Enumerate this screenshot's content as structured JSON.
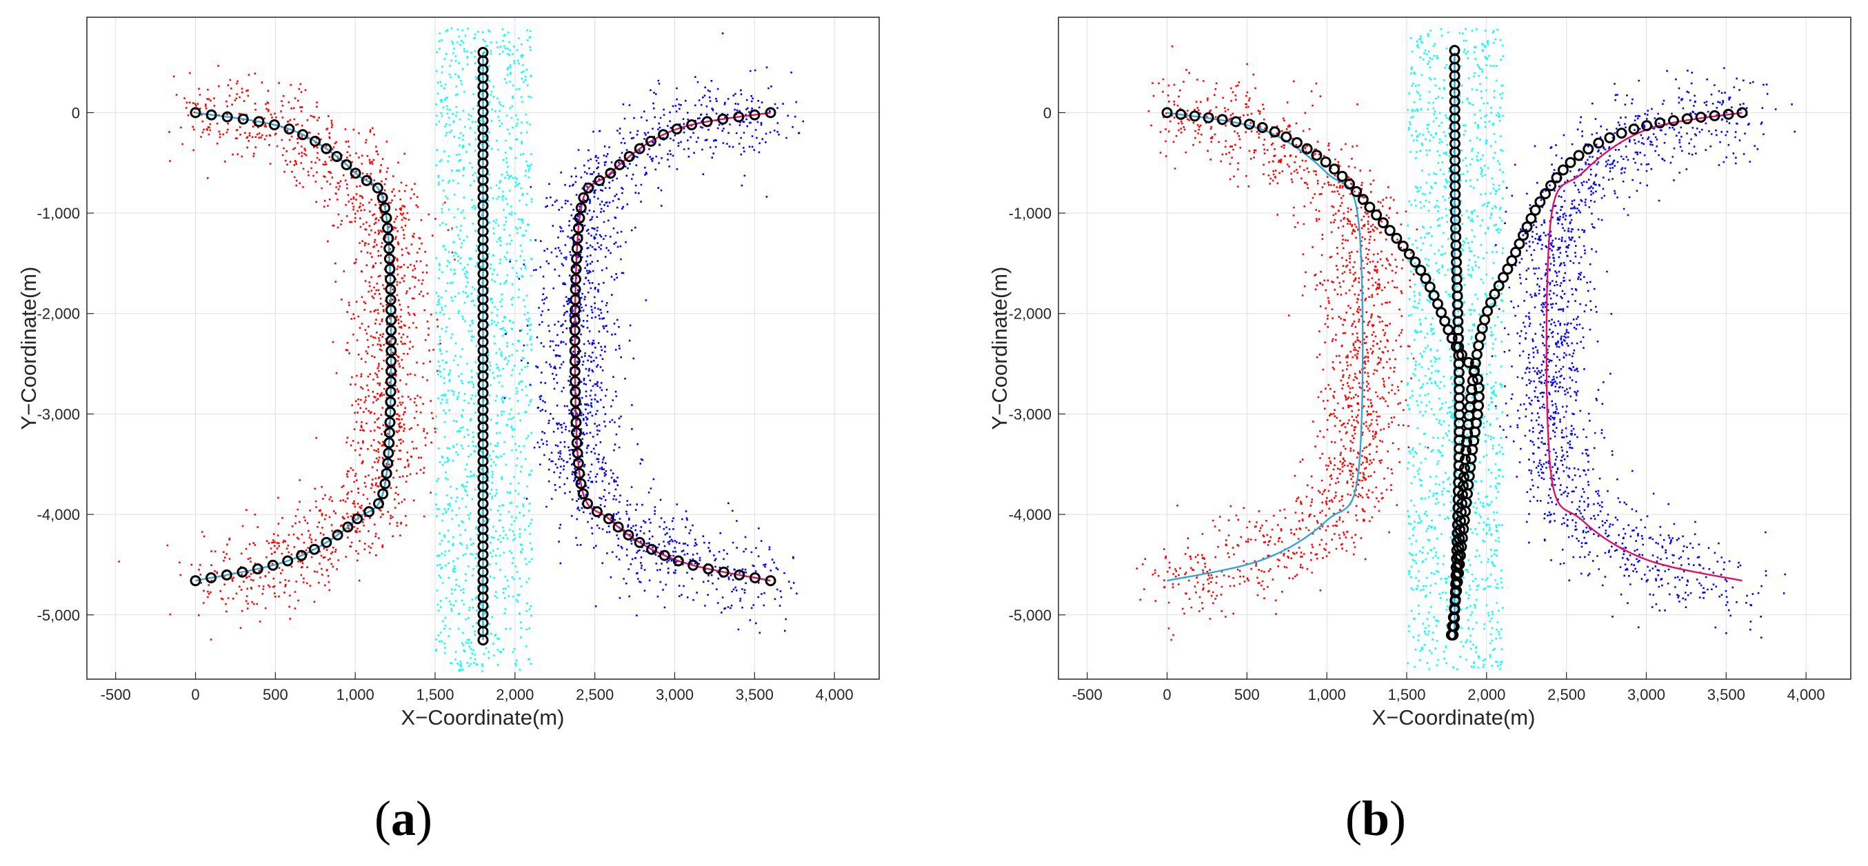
{
  "chart_data": [
    {
      "type": "scatter",
      "panel_label": "(a)",
      "panel_letter": "a",
      "xlabel": "X−Coordinate(m)",
      "ylabel": "Y−Coordinate(m)",
      "xlim": [
        -680,
        4280
      ],
      "ylim": [
        -5640,
        950
      ],
      "xticks": [
        -500,
        0,
        500,
        1000,
        1500,
        2000,
        2500,
        3000,
        3500,
        4000
      ],
      "xtick_labels": [
        "-500",
        "0",
        "500",
        "1,000",
        "1,500",
        "2,000",
        "2,500",
        "3,000",
        "3,500",
        "4,000"
      ],
      "yticks": [
        0,
        -1000,
        -2000,
        -3000,
        -4000,
        -5000
      ],
      "ytick_labels": [
        "0",
        "-1,000",
        "-2,000",
        "-3,000",
        "-4,000",
        "-5,000"
      ],
      "grid": true,
      "series": [
        {
          "name": "red measurements",
          "kind": "clutter-points",
          "color": "#ff0000",
          "count": 1500,
          "spread": [
            150,
            260
          ]
        },
        {
          "name": "cyan measurements",
          "kind": "clutter-points",
          "color": "#00ffff",
          "count": 1400,
          "x_range": [
            1500,
            2100
          ],
          "y_range": [
            -5550,
            850
          ]
        },
        {
          "name": "blue measurements",
          "kind": "clutter-points",
          "color": "#0000ff",
          "count": 1500,
          "spread": [
            150,
            260
          ]
        },
        {
          "name": "red target true track",
          "kind": "line",
          "color": "#2fa7d7",
          "path": [
            [
              0,
              0
            ],
            [
              600,
              -170
            ],
            [
              1000,
              -600
            ],
            [
              1200,
              -1100
            ],
            [
              1200,
              -3550
            ],
            [
              1000,
              -4060
            ],
            [
              600,
              -4450
            ],
            [
              0,
              -4660
            ]
          ]
        },
        {
          "name": "blue target true track",
          "kind": "line",
          "color": "#e0105a",
          "path": [
            [
              3600,
              0
            ],
            [
              3000,
              -170
            ],
            [
              2600,
              -600
            ],
            [
              2400,
              -1100
            ],
            [
              2400,
              -3550
            ],
            [
              2600,
              -4060
            ],
            [
              3000,
              -4450
            ],
            [
              3600,
              -4660
            ]
          ]
        },
        {
          "name": "cyan target true track",
          "kind": "line",
          "color": "#2fa7d7",
          "path": [
            [
              1800,
              600
            ],
            [
              1800,
              -5250
            ]
          ]
        },
        {
          "name": "red target estimates",
          "kind": "markers",
          "color": "#000000",
          "path": [
            [
              0,
              0
            ],
            [
              600,
              -170
            ],
            [
              1000,
              -600
            ],
            [
              1200,
              -1100
            ],
            [
              1200,
              -3550
            ],
            [
              1000,
              -4060
            ],
            [
              600,
              -4450
            ],
            [
              0,
              -4660
            ]
          ],
          "count": 60
        },
        {
          "name": "blue target estimates",
          "kind": "markers",
          "color": "#000000",
          "path": [
            [
              3600,
              0
            ],
            [
              3000,
              -170
            ],
            [
              2600,
              -600
            ],
            [
              2400,
              -1100
            ],
            [
              2400,
              -3550
            ],
            [
              2600,
              -4060
            ],
            [
              3000,
              -4450
            ],
            [
              3600,
              -4660
            ]
          ],
          "count": 60
        },
        {
          "name": "cyan target estimates",
          "kind": "markers",
          "color": "#000000",
          "path": [
            [
              1800,
              600
            ],
            [
              1800,
              -5250
            ]
          ],
          "count": 70
        }
      ]
    },
    {
      "type": "scatter",
      "panel_label": "(b)",
      "panel_letter": "b",
      "xlabel": "X−Coordinate(m)",
      "ylabel": "Y−Coordinate(m)",
      "xlim": [
        -680,
        4280
      ],
      "ylim": [
        -5640,
        950
      ],
      "xticks": [
        -500,
        0,
        500,
        1000,
        1500,
        2000,
        2500,
        3000,
        3500,
        4000
      ],
      "xtick_labels": [
        "-500",
        "0",
        "500",
        "1,000",
        "1,500",
        "2,000",
        "2,500",
        "3,000",
        "3,500",
        "4,000"
      ],
      "yticks": [
        0,
        -1000,
        -2000,
        -3000,
        -4000,
        -5000
      ],
      "ytick_labels": [
        "0",
        "-1,000",
        "-2,000",
        "-3,000",
        "-4,000",
        "-5,000"
      ],
      "grid": true,
      "series": [
        {
          "name": "red measurements",
          "kind": "clutter-points",
          "color": "#ff0000",
          "count": 1500,
          "spread": [
            150,
            260
          ]
        },
        {
          "name": "cyan measurements",
          "kind": "clutter-points",
          "color": "#00ffff",
          "count": 1400,
          "x_range": [
            1500,
            2100
          ],
          "y_range": [
            -5550,
            850
          ]
        },
        {
          "name": "blue measurements",
          "kind": "clutter-points",
          "color": "#0000ff",
          "count": 1500,
          "spread": [
            150,
            260
          ]
        },
        {
          "name": "red target true track",
          "kind": "line",
          "color": "#2fa7d7",
          "path": [
            [
              0,
              0
            ],
            [
              600,
              -170
            ],
            [
              1000,
              -600
            ],
            [
              1200,
              -1100
            ],
            [
              1200,
              -3550
            ],
            [
              1000,
              -4060
            ],
            [
              600,
              -4450
            ],
            [
              0,
              -4660
            ]
          ]
        },
        {
          "name": "blue target true track",
          "kind": "line",
          "color": "#e0105a",
          "path": [
            [
              3600,
              0
            ],
            [
              3000,
              -170
            ],
            [
              2600,
              -600
            ],
            [
              2400,
              -1100
            ],
            [
              2400,
              -3550
            ],
            [
              2600,
              -4060
            ],
            [
              3000,
              -4450
            ],
            [
              3600,
              -4660
            ]
          ]
        },
        {
          "name": "cyan target true track",
          "kind": "line",
          "color": "#2fa7d7",
          "path": [
            [
              1800,
              600
            ],
            [
              1800,
              -5250
            ]
          ]
        },
        {
          "name": "red target estimates",
          "kind": "markers",
          "color": "#000000",
          "path": [
            [
              0,
              0
            ],
            [
              600,
              -150
            ],
            [
              1000,
              -500
            ],
            [
              1300,
              -1000
            ],
            [
              1600,
              -1600
            ],
            [
              1800,
              -2300
            ],
            [
              1950,
              -2700
            ],
            [
              1900,
              -3500
            ],
            [
              1830,
              -4500
            ],
            [
              1780,
              -5200
            ]
          ],
          "count": 70
        },
        {
          "name": "blue target estimates",
          "kind": "markers",
          "color": "#000000",
          "path": [
            [
              3600,
              0
            ],
            [
              3000,
              -130
            ],
            [
              2600,
              -400
            ],
            [
              2350,
              -850
            ],
            [
              2150,
              -1500
            ],
            [
              2000,
              -2000
            ],
            [
              1920,
              -2600
            ],
            [
              1880,
              -3200
            ],
            [
              1840,
              -4000
            ],
            [
              1810,
              -4700
            ],
            [
              1790,
              -5200
            ]
          ],
          "count": 70
        },
        {
          "name": "cyan target estimates",
          "kind": "markers",
          "color": "#000000",
          "path": [
            [
              1800,
              620
            ],
            [
              1805,
              -1000
            ],
            [
              1820,
              -2000
            ],
            [
              1830,
              -3000
            ],
            [
              1820,
              -4000
            ],
            [
              1800,
              -5000
            ],
            [
              1790,
              -5200
            ]
          ],
          "count": 70
        }
      ]
    }
  ]
}
